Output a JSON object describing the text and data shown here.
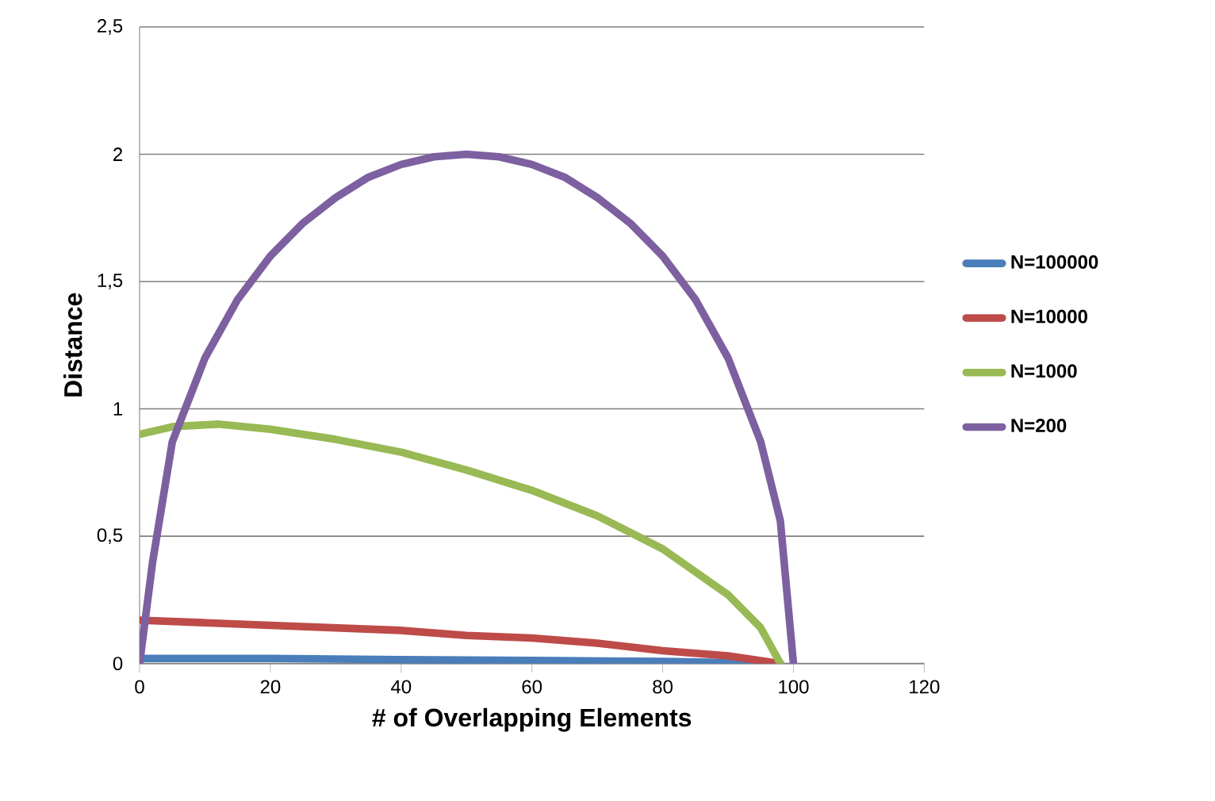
{
  "chart_data": {
    "type": "line",
    "xlabel": "# of Overlapping  Elements",
    "ylabel": "Distance",
    "xlim": [
      0,
      120
    ],
    "xticks": [
      0,
      20,
      40,
      60,
      80,
      100,
      120
    ],
    "ylim": [
      0,
      2.5
    ],
    "yticks": [
      0,
      {
        "value": 0.5,
        "label": "0,5"
      },
      1,
      {
        "value": 1.5,
        "label": "1,5"
      },
      2,
      {
        "value": 2.5,
        "label": "2,5"
      }
    ],
    "grid": "y",
    "legend": "right",
    "marker": "none",
    "line_style": "solid",
    "series": [
      {
        "name": "N=100000",
        "color": "#4a7ebb",
        "x": [
          0,
          20,
          40,
          60,
          80,
          98
        ],
        "values": [
          0.02,
          0.02,
          0.015,
          0.012,
          0.008,
          0
        ]
      },
      {
        "name": "N=10000",
        "color": "#be4b48",
        "x": [
          0,
          10,
          20,
          30,
          40,
          50,
          60,
          70,
          80,
          90,
          98
        ],
        "values": [
          0.17,
          0.16,
          0.15,
          0.14,
          0.13,
          0.11,
          0.1,
          0.08,
          0.05,
          0.03,
          0
        ]
      },
      {
        "name": "N=1000",
        "color": "#98b954",
        "x": [
          0,
          5,
          12,
          20,
          30,
          40,
          50,
          60,
          70,
          80,
          90,
          95,
          98
        ],
        "values": [
          0.9,
          0.93,
          0.94,
          0.92,
          0.88,
          0.83,
          0.76,
          0.68,
          0.58,
          0.45,
          0.27,
          0.14,
          0
        ]
      },
      {
        "name": "N=200",
        "color": "#7d60a0",
        "x": [
          0,
          2,
          5,
          10,
          15,
          20,
          25,
          30,
          35,
          40,
          45,
          50,
          55,
          60,
          65,
          70,
          75,
          80,
          85,
          90,
          95,
          98,
          100
        ],
        "values": [
          0,
          0.4,
          0.87,
          1.2,
          1.43,
          1.6,
          1.73,
          1.83,
          1.91,
          1.96,
          1.99,
          2.0,
          1.99,
          1.96,
          1.91,
          1.83,
          1.73,
          1.6,
          1.43,
          1.2,
          0.87,
          0.56,
          0
        ]
      }
    ]
  }
}
